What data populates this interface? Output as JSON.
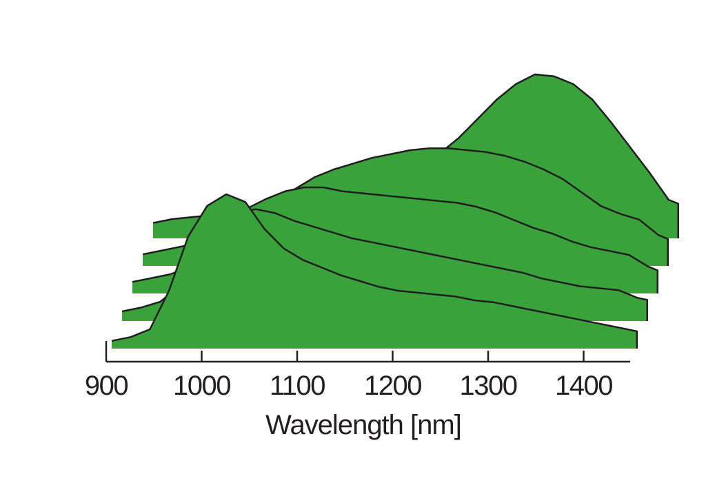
{
  "chart_data": {
    "type": "area",
    "style": "waterfall (stacked offset spectra, back to front)",
    "title": "",
    "xlabel": "Wavelength [nm]",
    "ylabel": "",
    "xlim": [
      900,
      1450
    ],
    "xticks": [
      900,
      1000,
      1100,
      1200,
      1300,
      1400
    ],
    "grid": false,
    "legend": "none",
    "fill_color": "#3aa23a",
    "line_color": "#1e1e1e",
    "y_units": "relative intensity (no axis shown)",
    "series": [
      {
        "x": [
          900,
          920,
          940,
          960,
          980,
          1000,
          1020,
          1040,
          1060,
          1080,
          1100,
          1120,
          1140,
          1160,
          1180,
          1200,
          1220,
          1240,
          1260,
          1280,
          1300,
          1320,
          1340,
          1360,
          1380,
          1400,
          1420,
          1440,
          1450
        ],
        "y": [
          0.08,
          0.1,
          0.11,
          0.12,
          0.13,
          0.13,
          0.14,
          0.16,
          0.2,
          0.25,
          0.26,
          0.27,
          0.3,
          0.34,
          0.38,
          0.44,
          0.52,
          0.62,
          0.72,
          0.8,
          0.85,
          0.84,
          0.8,
          0.72,
          0.6,
          0.47,
          0.34,
          0.2,
          0.18
        ]
      },
      {
        "x": [
          900,
          920,
          940,
          960,
          980,
          1000,
          1020,
          1040,
          1060,
          1080,
          1100,
          1120,
          1140,
          1160,
          1180,
          1200,
          1220,
          1240,
          1260,
          1280,
          1300,
          1320,
          1340,
          1360,
          1380,
          1400,
          1420,
          1440,
          1450
        ],
        "y": [
          0.06,
          0.08,
          0.1,
          0.12,
          0.18,
          0.26,
          0.3,
          0.34,
          0.4,
          0.46,
          0.5,
          0.53,
          0.56,
          0.58,
          0.6,
          0.61,
          0.61,
          0.6,
          0.59,
          0.57,
          0.54,
          0.5,
          0.45,
          0.38,
          0.31,
          0.27,
          0.24,
          0.16,
          0.14
        ]
      },
      {
        "x": [
          900,
          920,
          940,
          960,
          980,
          1000,
          1020,
          1040,
          1060,
          1080,
          1100,
          1120,
          1140,
          1160,
          1180,
          1200,
          1220,
          1240,
          1260,
          1280,
          1300,
          1320,
          1340,
          1360,
          1380,
          1400,
          1420,
          1440,
          1450
        ],
        "y": [
          0.06,
          0.08,
          0.1,
          0.14,
          0.24,
          0.36,
          0.44,
          0.49,
          0.53,
          0.55,
          0.55,
          0.53,
          0.52,
          0.51,
          0.5,
          0.49,
          0.48,
          0.47,
          0.45,
          0.42,
          0.38,
          0.34,
          0.31,
          0.27,
          0.24,
          0.22,
          0.2,
          0.14,
          0.12
        ]
      },
      {
        "x": [
          900,
          920,
          940,
          960,
          980,
          1000,
          1020,
          1040,
          1060,
          1080,
          1100,
          1120,
          1140,
          1160,
          1180,
          1200,
          1220,
          1240,
          1260,
          1280,
          1300,
          1320,
          1340,
          1360,
          1380,
          1400,
          1420,
          1440,
          1450
        ],
        "y": [
          0.05,
          0.07,
          0.1,
          0.18,
          0.34,
          0.5,
          0.56,
          0.58,
          0.56,
          0.52,
          0.49,
          0.46,
          0.43,
          0.41,
          0.39,
          0.37,
          0.35,
          0.33,
          0.31,
          0.29,
          0.27,
          0.25,
          0.22,
          0.2,
          0.18,
          0.17,
          0.16,
          0.12,
          0.11
        ]
      },
      {
        "x": [
          900,
          920,
          940,
          960,
          980,
          1000,
          1020,
          1040,
          1060,
          1080,
          1100,
          1120,
          1140,
          1160,
          1180,
          1200,
          1220,
          1240,
          1260,
          1280,
          1300,
          1320,
          1340,
          1360,
          1380,
          1400,
          1420,
          1440,
          1450
        ],
        "y": [
          0.04,
          0.06,
          0.1,
          0.3,
          0.58,
          0.74,
          0.8,
          0.76,
          0.62,
          0.52,
          0.46,
          0.42,
          0.38,
          0.35,
          0.32,
          0.3,
          0.29,
          0.28,
          0.27,
          0.25,
          0.24,
          0.22,
          0.2,
          0.18,
          0.16,
          0.14,
          0.12,
          0.1,
          0.09
        ]
      }
    ]
  }
}
